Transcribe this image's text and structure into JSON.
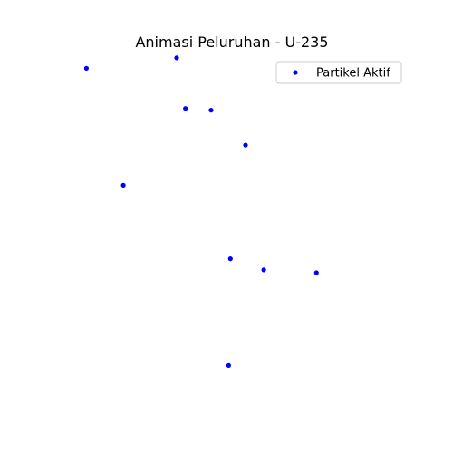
{
  "chart_data": {
    "type": "scatter",
    "title": "Animasi Peluruhan - U-235",
    "axes_visible": false,
    "grid": false,
    "legend_position": "top-right",
    "xlim": [
      0,
      1
    ],
    "ylim": [
      0,
      1
    ],
    "series": [
      {
        "name": "Partikel Aktif",
        "color": "#0000ff",
        "points": [
          {
            "x": 0.085,
            "y": 0.96
          },
          {
            "x": 0.342,
            "y": 0.99
          },
          {
            "x": 0.367,
            "y": 0.845
          },
          {
            "x": 0.44,
            "y": 0.84
          },
          {
            "x": 0.538,
            "y": 0.74
          },
          {
            "x": 0.19,
            "y": 0.625
          },
          {
            "x": 0.495,
            "y": 0.414
          },
          {
            "x": 0.59,
            "y": 0.382
          },
          {
            "x": 0.74,
            "y": 0.374
          },
          {
            "x": 0.49,
            "y": 0.108
          }
        ]
      }
    ]
  }
}
